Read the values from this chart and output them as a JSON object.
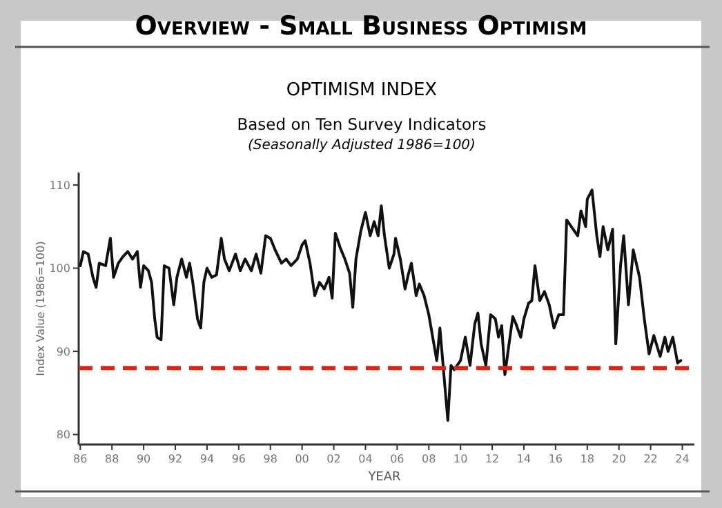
{
  "chart_data": {
    "type": "line",
    "title": "Overview - Small Business Optimism",
    "subtitle": "OPTIMISM INDEX",
    "annotations": [
      "Based on Ten Survey Indicators",
      "(Seasonally Adjusted 1986=100)"
    ],
    "xlabel": "YEAR",
    "ylabel": "Index Value (1986=100)",
    "xlim": [
      1985.9,
      2024.5
    ],
    "ylim": [
      78.8,
      111.5
    ],
    "xticks": [
      {
        "value": 1986,
        "label": "86"
      },
      {
        "value": 1988,
        "label": "88"
      },
      {
        "value": 1990,
        "label": "90"
      },
      {
        "value": 1992,
        "label": "92"
      },
      {
        "value": 1994,
        "label": "94"
      },
      {
        "value": 1996,
        "label": "96"
      },
      {
        "value": 1998,
        "label": "98"
      },
      {
        "value": 2000,
        "label": "00"
      },
      {
        "value": 2002,
        "label": "02"
      },
      {
        "value": 2004,
        "label": "04"
      },
      {
        "value": 2006,
        "label": "06"
      },
      {
        "value": 2008,
        "label": "08"
      },
      {
        "value": 2010,
        "label": "10"
      },
      {
        "value": 2012,
        "label": "12"
      },
      {
        "value": 2014,
        "label": "14"
      },
      {
        "value": 2016,
        "label": "16"
      },
      {
        "value": 2018,
        "label": "18"
      },
      {
        "value": 2020,
        "label": "20"
      },
      {
        "value": 2022,
        "label": "22"
      },
      {
        "value": 2024,
        "label": "24"
      }
    ],
    "yticks": [
      80,
      90,
      100,
      110
    ],
    "marker": "none",
    "line_style": "solid",
    "ref_lines": [
      {
        "axis": "y",
        "value": 88,
        "color": "#e8200c",
        "line_style": "dashed"
      }
    ],
    "x": [
      1986.0,
      1986.2,
      1986.5,
      1986.8,
      1987.0,
      1987.2,
      1987.6,
      1987.9,
      1988.1,
      1988.4,
      1988.7,
      1989.0,
      1989.3,
      1989.6,
      1989.8,
      1990.0,
      1990.3,
      1990.5,
      1990.7,
      1990.85,
      1991.1,
      1991.3,
      1991.6,
      1991.9,
      1992.1,
      1992.4,
      1992.7,
      1992.9,
      1993.1,
      1993.4,
      1993.6,
      1993.8,
      1994.0,
      1994.3,
      1994.6,
      1994.9,
      1995.1,
      1995.4,
      1995.8,
      1996.1,
      1996.4,
      1996.8,
      1997.1,
      1997.4,
      1997.7,
      1998.0,
      1998.3,
      1998.7,
      1999.0,
      1999.3,
      1999.7,
      2000.0,
      2000.2,
      2000.5,
      2000.8,
      2001.1,
      2001.4,
      2001.7,
      2001.9,
      2002.1,
      2002.4,
      2002.7,
      2003.0,
      2003.2,
      2003.4,
      2003.7,
      2004.0,
      2004.3,
      2004.55,
      2004.8,
      2005.0,
      2005.2,
      2005.5,
      2005.8,
      2005.9,
      2006.2,
      2006.5,
      2006.7,
      2006.9,
      2007.2,
      2007.4,
      2007.7,
      2008.0,
      2008.3,
      2008.5,
      2008.7,
      2008.95,
      2009.2,
      2009.4,
      2009.6,
      2010.0,
      2010.3,
      2010.6,
      2010.9,
      2011.1,
      2011.3,
      2011.6,
      2011.9,
      2012.2,
      2012.4,
      2012.6,
      2012.8,
      2013.0,
      2013.3,
      2013.5,
      2013.8,
      2014.0,
      2014.3,
      2014.5,
      2014.7,
      2015.0,
      2015.3,
      2015.6,
      2015.9,
      2016.2,
      2016.5,
      2016.7,
      2017.1,
      2017.4,
      2017.6,
      2017.9,
      2018.0,
      2018.3,
      2018.6,
      2018.8,
      2019.0,
      2019.3,
      2019.6,
      2019.8,
      2020.1,
      2020.3,
      2020.6,
      2020.9,
      2021.3,
      2021.6,
      2021.9,
      2022.2,
      2022.6,
      2022.9,
      2023.1,
      2023.4,
      2023.7,
      2023.9
    ],
    "series": [
      {
        "color": "#111111",
        "values": [
          100.3,
          102,
          101.7,
          98.9,
          97.7,
          100.6,
          100.3,
          103.6,
          98.9,
          100.6,
          101.4,
          102,
          101.1,
          102,
          97.7,
          100.3,
          99.7,
          98.3,
          93.9,
          91.7,
          91.4,
          100.3,
          100,
          95.6,
          98.9,
          101.1,
          98.9,
          100.6,
          98.3,
          93.9,
          92.8,
          98.3,
          100,
          98.9,
          99.2,
          103.6,
          101.1,
          99.7,
          101.7,
          99.7,
          101.1,
          99.7,
          101.7,
          99.4,
          103.9,
          103.6,
          102.2,
          100.6,
          101.1,
          100.3,
          101.1,
          102.8,
          103.3,
          100.6,
          96.7,
          98.3,
          97.5,
          98.9,
          96.4,
          104.2,
          102.5,
          101.1,
          99.4,
          95.3,
          101.1,
          104.4,
          106.7,
          103.9,
          105.6,
          103.9,
          107.5,
          103.9,
          100,
          101.7,
          103.6,
          101.1,
          97.5,
          99.2,
          100.6,
          96.7,
          98.1,
          96.7,
          94.4,
          91.1,
          88.9,
          92.8,
          87.2,
          81.7,
          88.3,
          87.8,
          88.9,
          91.7,
          88.3,
          93.3,
          94.6,
          90.9,
          88.3,
          94.4,
          93.9,
          91.7,
          93.1,
          87.2,
          90,
          94.2,
          93.3,
          91.7,
          93.9,
          95.8,
          96.1,
          100.3,
          96.1,
          97.2,
          95.6,
          92.8,
          94.4,
          94.4,
          105.8,
          104.7,
          103.9,
          106.9,
          105,
          108.3,
          109.4,
          103.9,
          101.4,
          105,
          102.2,
          104.7,
          90.9,
          100.3,
          103.9,
          95.6,
          102.2,
          98.9,
          93.9,
          89.7,
          91.9,
          89.4,
          91.7,
          90,
          91.7,
          88.6,
          88.9
        ]
      }
    ]
  }
}
